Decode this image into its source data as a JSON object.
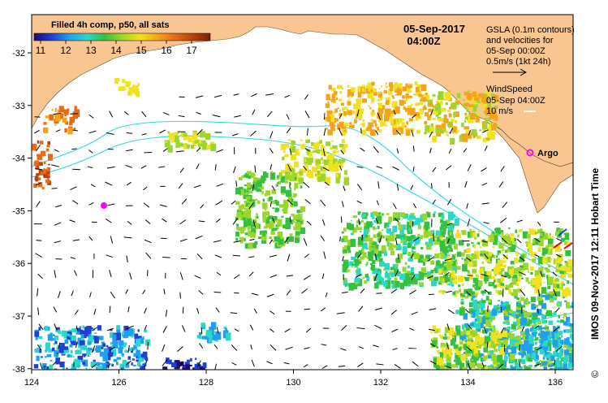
{
  "colorbar": {
    "title": "Filled 4h comp, p50, all sats",
    "ticks": [
      "11",
      "12",
      "13",
      "14",
      "15",
      "16",
      "17"
    ],
    "colors": [
      "#1a0a7a",
      "#1f3fd6",
      "#1ea0f0",
      "#2ad8c8",
      "#35c040",
      "#9cd62a",
      "#f0e21f",
      "#f5a41a",
      "#e86a14",
      "#b8420c",
      "#7a2006"
    ]
  },
  "header": {
    "date": "05-Sep-2017",
    "time": "04:00Z"
  },
  "gsla_legend": {
    "line1": "GSLA (0.1m contours)",
    "line2": "and velocities for",
    "line3": "05-Sep 00:00Z",
    "line4": "0.5m/s (1kt 24h)"
  },
  "wind_legend": {
    "line1": "WindSpeed",
    "line2": "05-Sep 04:00Z",
    "line3": "10 m/s"
  },
  "argo_label": "Argo",
  "credit": "IMOS 09-Nov-2017 12:11 Hobart Time",
  "copyright_symbol": "©",
  "axes": {
    "x_ticks": [
      "124",
      "126",
      "128",
      "130",
      "132",
      "134",
      "136"
    ],
    "y_ticks": [
      "-32",
      "-33",
      "-34",
      "-35",
      "-36",
      "-37",
      "-38"
    ]
  },
  "colors": {
    "land": "#f9c590",
    "ocean": "#ffffff",
    "contour": "#2fd6e6",
    "arrow": "#000000",
    "argo": "#ff00ff"
  }
}
